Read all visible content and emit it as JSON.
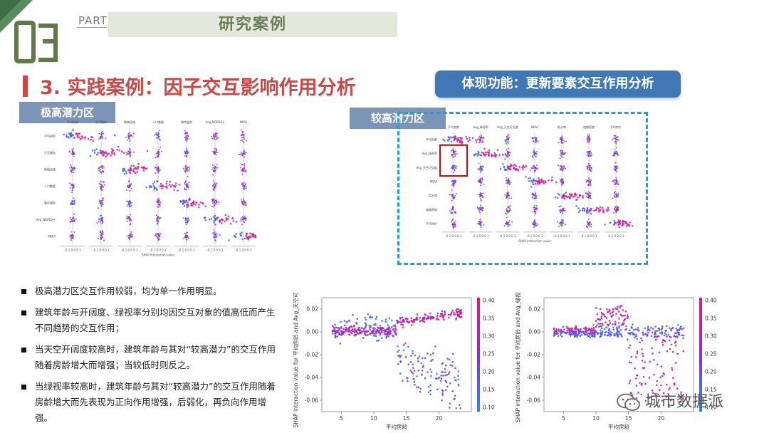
{
  "header": {
    "section_number": "03",
    "part_label": "PART",
    "section_title": "研究案例",
    "main_title": "3. 实践案例：因子交互影响作用分析",
    "feature_badge": "体现功能：更新要素交互作用分析",
    "accent_color": "#c94848",
    "badge_color": "#3f78b5"
  },
  "tags": {
    "extreme": "极高潜力区",
    "high": "较高潜力区"
  },
  "plot_left": {
    "columns": [
      "平均房龄",
      "生活服务",
      "购物设施",
      "人口数量",
      "餐饮服务",
      "Avg_NDPDX+",
      "NDVI"
    ],
    "rows": [
      "平均房龄",
      "生活服务",
      "购物设施",
      "人口数量",
      "餐饮服务",
      "Avg_NDPDX+",
      "NDVI"
    ],
    "tick_label": "-0.1 0.0 0.1",
    "xlabel": "SHAP interaction value"
  },
  "plot_right": {
    "columns": [
      "平均房龄",
      "Avg_绿视率",
      "Avg_天空可见度",
      "NDVI",
      "距水域",
      "道路密度",
      "平均房价"
    ],
    "rows": [
      "平均房龄",
      "Avg_绿视率",
      "Avg_天空可见度",
      "NDVI",
      "距水域",
      "道路密度",
      "平均房价"
    ],
    "tick_label": "-0.1 0.0 0.1",
    "xlabel": "SHAP interaction value",
    "highlight_color": "#a11f1f",
    "frame_color": "#2d9bd3"
  },
  "bullets": [
    "极高潜力区交互作用较弱，均为单一作用明显。",
    "建筑年龄与开阔度、绿视率分别均因交互对象的值高低而产生不同趋势的交互作用；",
    "当天空开阔度较高时，建筑年龄与其对“较高潜力”的交互作用随着房龄增大而增强；当较低时则反之。",
    "当绿视率较高时，建筑年龄与其对“较高潜力”的交互作用随着房龄增大而先表现为正向作用增强，后弱化，再负向作用增强。"
  ],
  "scatter_left": {
    "ylabel": "SHAP interaction value for 平均房龄 and Avg_天空可见度",
    "xlabel": "平均房龄",
    "colorbar_label": "Avg_天空可见度",
    "y_ticks": [
      "0.02",
      "0.00",
      "-0.02",
      "-0.04",
      "-0.06"
    ],
    "x_ticks": [
      "5",
      "10",
      "15",
      "20"
    ],
    "cbar_ticks": [
      "0.40",
      "0.35",
      "0.30",
      "0.25",
      "0.20",
      "0.15",
      "0.10"
    ]
  },
  "scatter_right": {
    "ylabel": "SHAP interaction value for 平均房龄 and Avg_绿视率",
    "xlabel": "平均房龄",
    "colorbar_label": "Avg_绿视率",
    "y_ticks": [
      "0.02",
      "0.00",
      "-0.02",
      "-0.04",
      "-0.06"
    ],
    "x_ticks": [
      "5",
      "10",
      "15",
      "20"
    ],
    "cbar_ticks": [
      "0.40",
      "0.35",
      "0.30",
      "0.25",
      "0.20",
      "0.15",
      "0.10"
    ]
  },
  "watermark": "城市数据派",
  "icons": {
    "wechat": "wechat-icon"
  }
}
